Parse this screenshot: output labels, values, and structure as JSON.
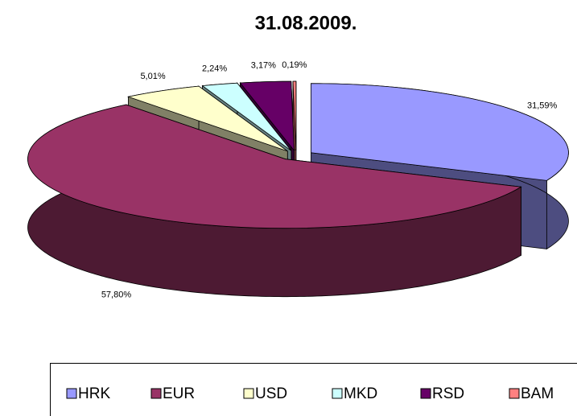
{
  "chart_data": {
    "type": "pie",
    "title": "31.08.2009.",
    "categories": [
      "HRK",
      "EUR",
      "USD",
      "MKD",
      "RSD",
      "BAM"
    ],
    "values": [
      31.59,
      57.8,
      5.01,
      2.24,
      3.17,
      0.19
    ],
    "value_labels": [
      "31,59%",
      "57,80%",
      "5,01%",
      "2,24%",
      "3,17%",
      "0,19%"
    ],
    "colors": [
      "#9999ff",
      "#993366",
      "#ffffcc",
      "#ccffff",
      "#660066",
      "#ff8080"
    ],
    "legend": "bottom"
  }
}
